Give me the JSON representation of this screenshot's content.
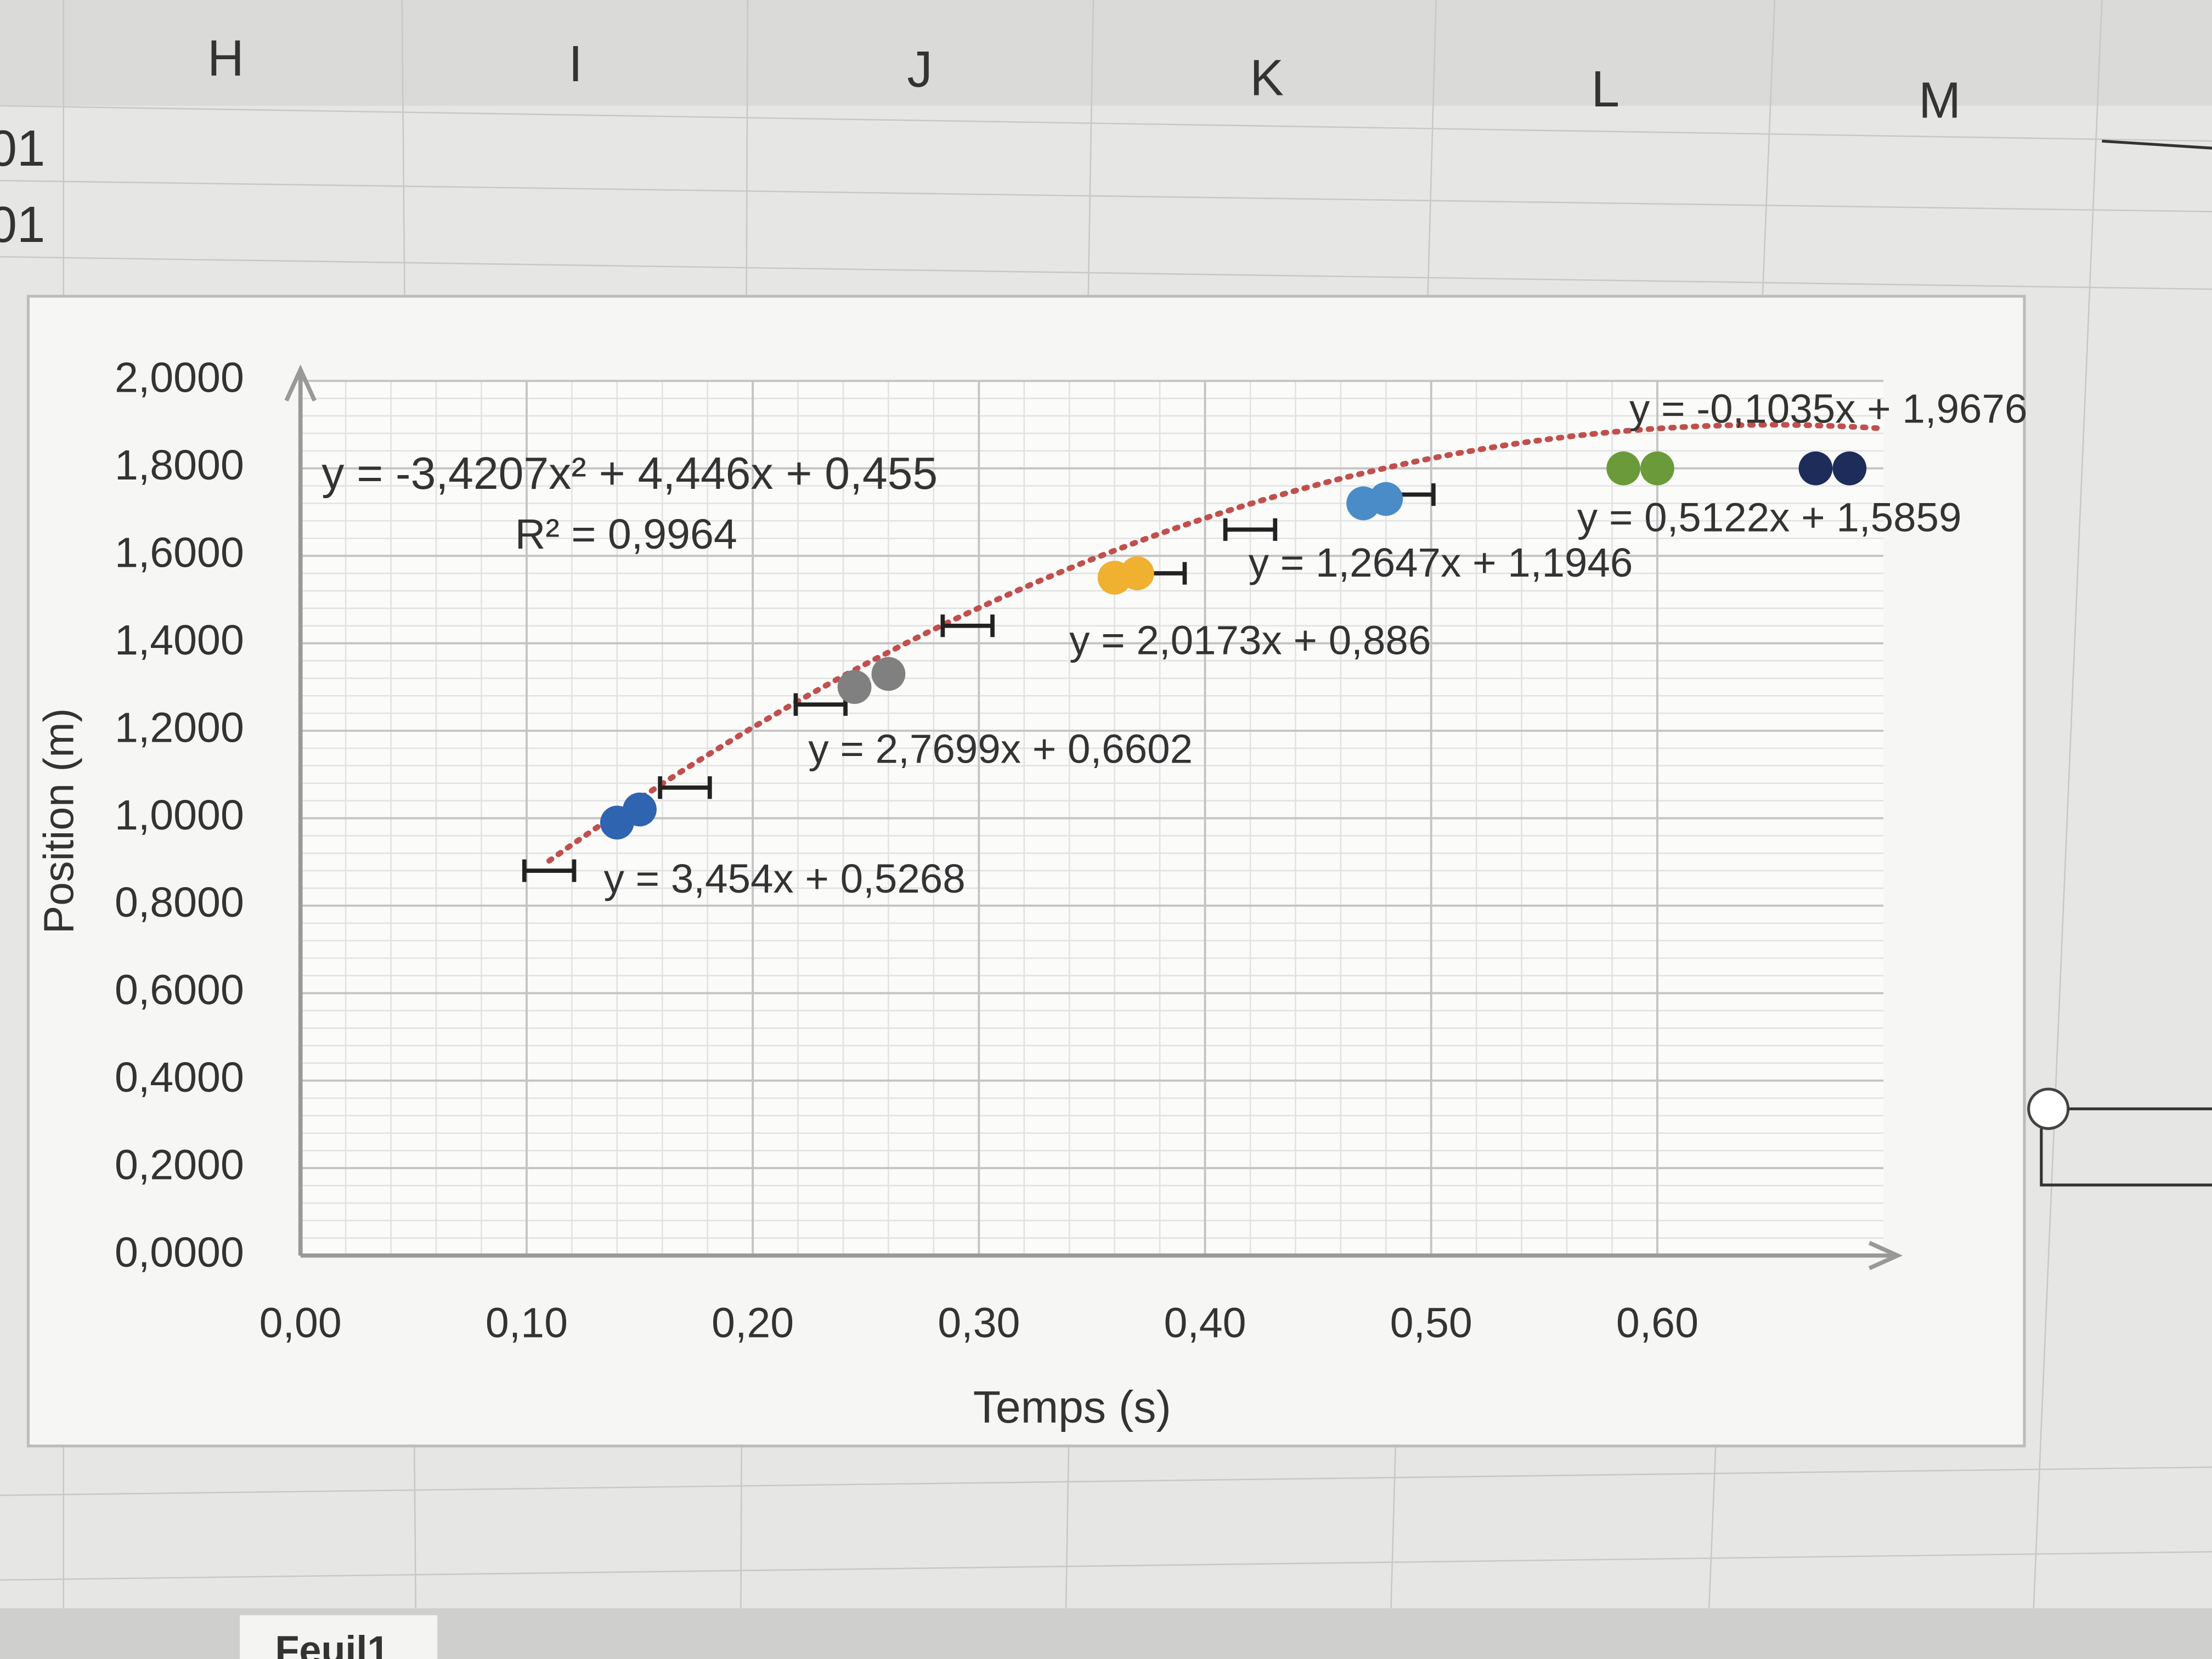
{
  "spreadsheet": {
    "columns": [
      "H",
      "I",
      "J",
      "K",
      "L",
      "M"
    ],
    "row_fragments": [
      "01",
      "01"
    ],
    "sheet_tab": "Feuil1"
  },
  "chart_data": {
    "type": "scatter",
    "x_label": "Temps (s)",
    "y_label": "Position (m)",
    "xlim": [
      0,
      0.7
    ],
    "ylim": [
      0,
      2
    ],
    "xticks": [
      {
        "value": 0,
        "label": "0,00"
      },
      {
        "value": 0.1,
        "label": "0,10"
      },
      {
        "value": 0.2,
        "label": "0,20"
      },
      {
        "value": 0.3,
        "label": "0,30"
      },
      {
        "value": 0.4,
        "label": "0,40"
      },
      {
        "value": 0.5,
        "label": "0,50"
      },
      {
        "value": 0.6,
        "label": "0,60"
      }
    ],
    "yticks": [
      {
        "value": 0,
        "label": "0,0000"
      },
      {
        "value": 0.2,
        "label": "0,2000"
      },
      {
        "value": 0.4,
        "label": "0,4000"
      },
      {
        "value": 0.6,
        "label": "0,6000"
      },
      {
        "value": 0.8,
        "label": "0,8000"
      },
      {
        "value": 1,
        "label": "1,0000"
      },
      {
        "value": 1.2,
        "label": "1,2000"
      },
      {
        "value": 1.4,
        "label": "1,4000"
      },
      {
        "value": 1.6,
        "label": "1,6000"
      },
      {
        "value": 1.8,
        "label": "1,8000"
      },
      {
        "value": 2,
        "label": "2,0000"
      }
    ],
    "grid": true,
    "series": [
      {
        "color": "#2e64b0",
        "x": [
          0.14,
          0.15
        ],
        "values": [
          0.99,
          1.02
        ],
        "equation": "y = 3,454x + 0,5268"
      },
      {
        "color": "#808080",
        "x": [
          0.245,
          0.26
        ],
        "values": [
          1.3,
          1.33
        ],
        "equation": "y = 2,7699x + 0,6602"
      },
      {
        "color": "#f0b030",
        "x": [
          0.36,
          0.37
        ],
        "values": [
          1.55,
          1.56
        ],
        "equation": "y = 2,0173x + 0,886"
      },
      {
        "color": "#4a8cc8",
        "x": [
          0.47,
          0.48
        ],
        "values": [
          1.72,
          1.73
        ],
        "equation": "y = 1,2647x + 1,1946"
      },
      {
        "color": "#6a9a3a",
        "x": [
          0.585,
          0.6
        ],
        "values": [
          1.8,
          1.8
        ],
        "equation": "y = 0,5122x + 1,5859"
      },
      {
        "color": "#1e2c5a",
        "x": [
          0.67,
          0.685
        ],
        "values": [
          1.8,
          1.8
        ],
        "equation": "y = -0,1035x + 1,9676"
      }
    ],
    "error_bars": {
      "color": "#222222",
      "x": [
        0.11,
        0.17,
        0.23,
        0.295,
        0.38,
        0.42,
        0.49
      ],
      "values": [
        0.88,
        1.07,
        1.26,
        1.44,
        1.56,
        1.66,
        1.74
      ],
      "xerr": 0.011
    },
    "trendline": {
      "color": "#c0504d",
      "coefficients": [
        -3.4207,
        4.446,
        0.455
      ],
      "x_range": [
        0.11,
        0.7
      ],
      "label": "y = -3,4207x² + 4,446x + 0,455",
      "r2_label": "R² = 0,9964"
    }
  }
}
